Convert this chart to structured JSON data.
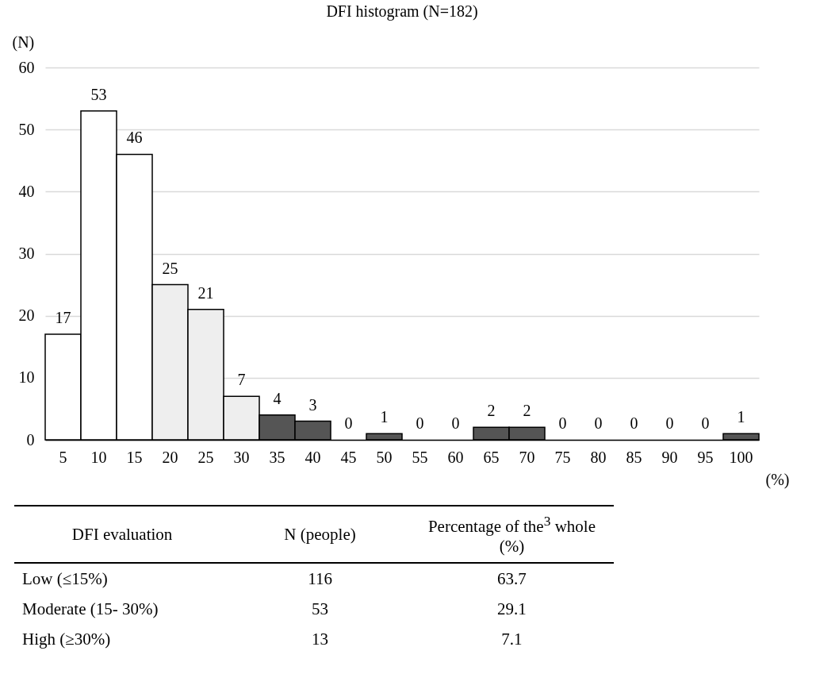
{
  "chart_data": {
    "type": "bar",
    "title": "DFI histogram (N=182)",
    "xlabel": "(%)",
    "ylabel": "(N)",
    "categories": [
      "5",
      "10",
      "15",
      "20",
      "25",
      "30",
      "35",
      "40",
      "45",
      "50",
      "55",
      "60",
      "65",
      "70",
      "75",
      "80",
      "85",
      "90",
      "95",
      "100"
    ],
    "values": [
      17,
      53,
      46,
      25,
      21,
      7,
      4,
      3,
      0,
      1,
      0,
      0,
      2,
      2,
      0,
      0,
      0,
      0,
      0,
      1
    ],
    "colors": [
      "#ffffff",
      "#ffffff",
      "#ffffff",
      "#eeeeee",
      "#eeeeee",
      "#eeeeee",
      "#555555",
      "#555555",
      "#555555",
      "#555555",
      "#555555",
      "#555555",
      "#555555",
      "#555555",
      "#555555",
      "#555555",
      "#555555",
      "#555555",
      "#555555",
      "#555555"
    ],
    "ylim": [
      0,
      60
    ],
    "yticks": [
      0,
      10,
      20,
      30,
      40,
      50,
      60
    ],
    "grid": "y",
    "data_labels": true,
    "annotations": [
      "DFI evaluation",
      "N (people)",
      "Percentage of the$^{3}$ whole (%)",
      "Low (≤15%)",
      "116",
      "63.7",
      "Moderate (15- 30%)",
      "53",
      "29.1",
      "High (≥30%)",
      "13",
      "7.1"
    ]
  }
}
